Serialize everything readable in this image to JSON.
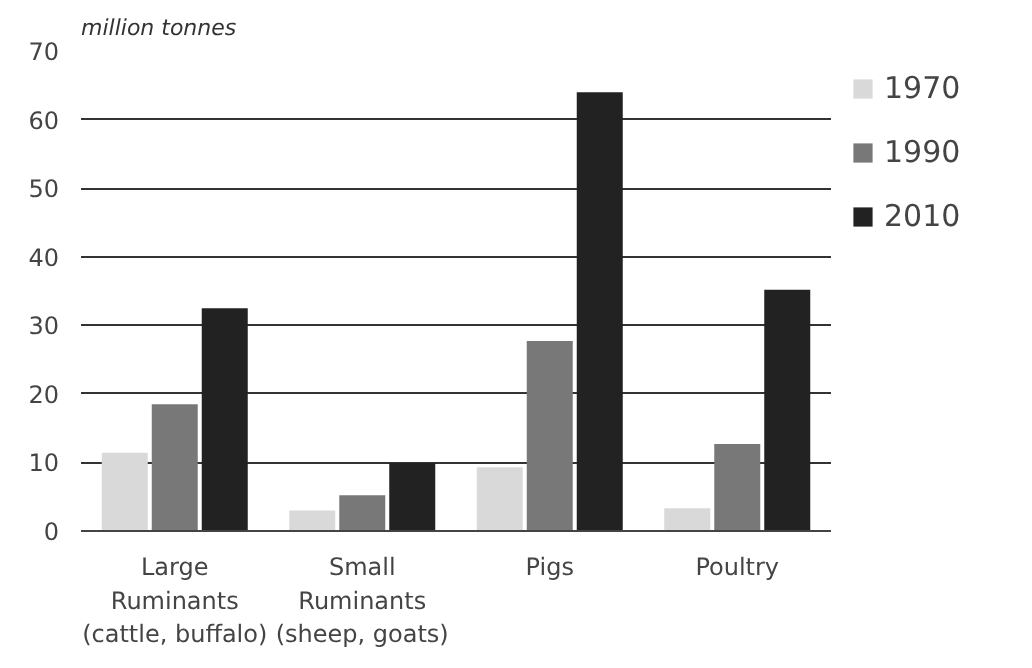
{
  "chart_data": {
    "type": "bar",
    "ylabel": "million tonnes",
    "categories": [
      "Large\nRuminants\n(cattle, buffalo)",
      "Small\nRuminants\n(sheep, goats)",
      "Pigs",
      "Poultry"
    ],
    "series": [
      {
        "name": "1970",
        "color": "#d9d9d9",
        "values": [
          11.4,
          3.0,
          9.3,
          3.3
        ]
      },
      {
        "name": "1990",
        "color": "#787878",
        "values": [
          18.5,
          5.2,
          27.7,
          12.7
        ]
      },
      {
        "name": "2010",
        "color": "#222222",
        "values": [
          32.5,
          9.9,
          64,
          35.2
        ]
      }
    ],
    "ylim": [
      0,
      70
    ],
    "yticks": [
      0,
      10,
      20,
      30,
      40,
      50,
      60,
      70
    ],
    "grid": "y",
    "legend": "right"
  }
}
